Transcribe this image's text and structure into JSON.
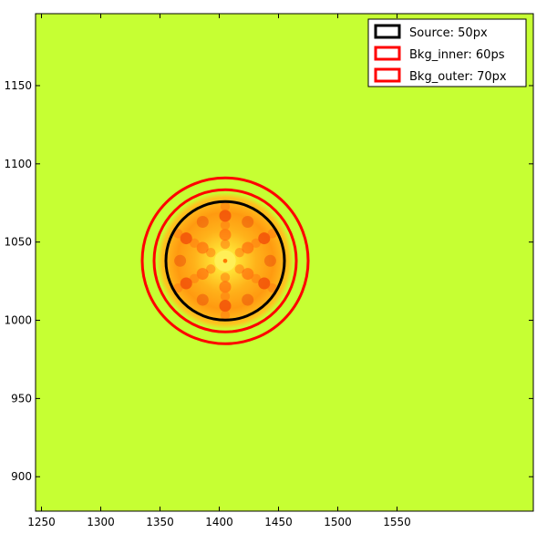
{
  "chart_data": {
    "type": "heatmap",
    "title": "",
    "xlabel": "",
    "ylabel": "",
    "xlim": [
      1245,
      1665
    ],
    "ylim": [
      878,
      1196
    ],
    "x_ticks": [
      1250,
      1300,
      1350,
      1400,
      1450,
      1500,
      1550
    ],
    "y_ticks": [
      900,
      950,
      1000,
      1050,
      1100,
      1150
    ],
    "x_tick_labels": [
      "1250",
      "1300",
      "1350",
      "1400",
      "1450",
      "1500",
      "1550"
    ],
    "y_tick_labels": [
      "900",
      "950",
      "1000",
      "1050",
      "1100",
      "1150"
    ],
    "grid": false,
    "background_color": "#c6ff33",
    "source_center": [
      1405,
      1038
    ],
    "source_spot_color": "#ff7b00",
    "apertures": [
      {
        "name": "Source: 50px",
        "radius": 50,
        "color": "#000000"
      },
      {
        "name": "Bkg_inner: 60ps",
        "radius": 60,
        "color": "#ff0000"
      },
      {
        "name": "Bkg_outer: 70px",
        "radius": 70,
        "color": "#ff0000"
      }
    ],
    "legend": {
      "location": "top-right",
      "entries": [
        "Source: 50px",
        "Bkg_inner: 60ps",
        "Bkg_outer: 70px"
      ]
    }
  }
}
